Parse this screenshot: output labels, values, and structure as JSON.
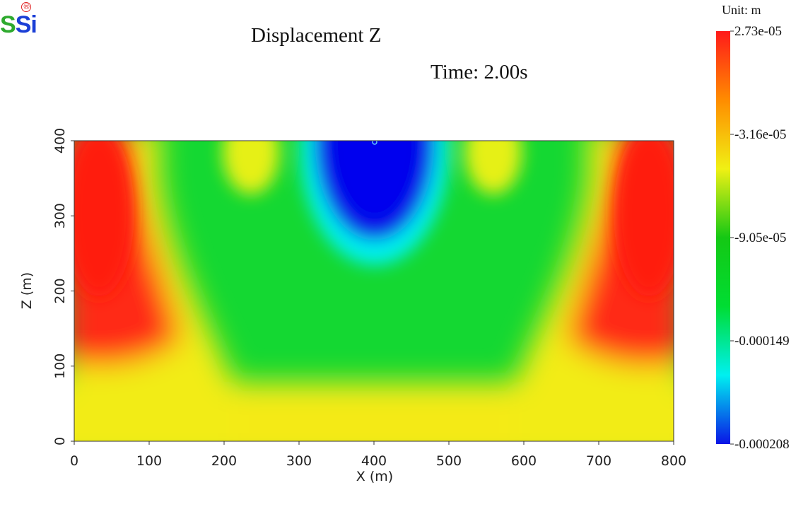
{
  "logo": {
    "part1": "S",
    "part2": "Si",
    "registered": "®"
  },
  "chart_data": {
    "type": "heatmap",
    "title": "Displacement Z",
    "subtitle": "Time: 2.00s",
    "xlabel": "X (m)",
    "ylabel": "Z (m)",
    "xlim": [
      0,
      800
    ],
    "ylim": [
      0,
      400
    ],
    "xticks": [
      0,
      100,
      200,
      300,
      400,
      500,
      600,
      700,
      800
    ],
    "yticks": [
      0,
      100,
      200,
      300,
      400
    ],
    "grid": false,
    "colorbar": {
      "unit_label": "Unit:  m",
      "ticks": [
        "2.73e-05",
        "-3.16e-05",
        "-9.05e-05",
        "-0.000149",
        "-0.000208"
      ],
      "min": -0.000208,
      "max": 2.73e-05,
      "colors": [
        "#0a14e6",
        "#00f0f0",
        "#00dd33",
        "#14c814",
        "#f0f014",
        "#ff8c00",
        "#ff1a1a"
      ]
    },
    "field_description_points": {
      "source_x": 400,
      "source_z": 400
    }
  }
}
